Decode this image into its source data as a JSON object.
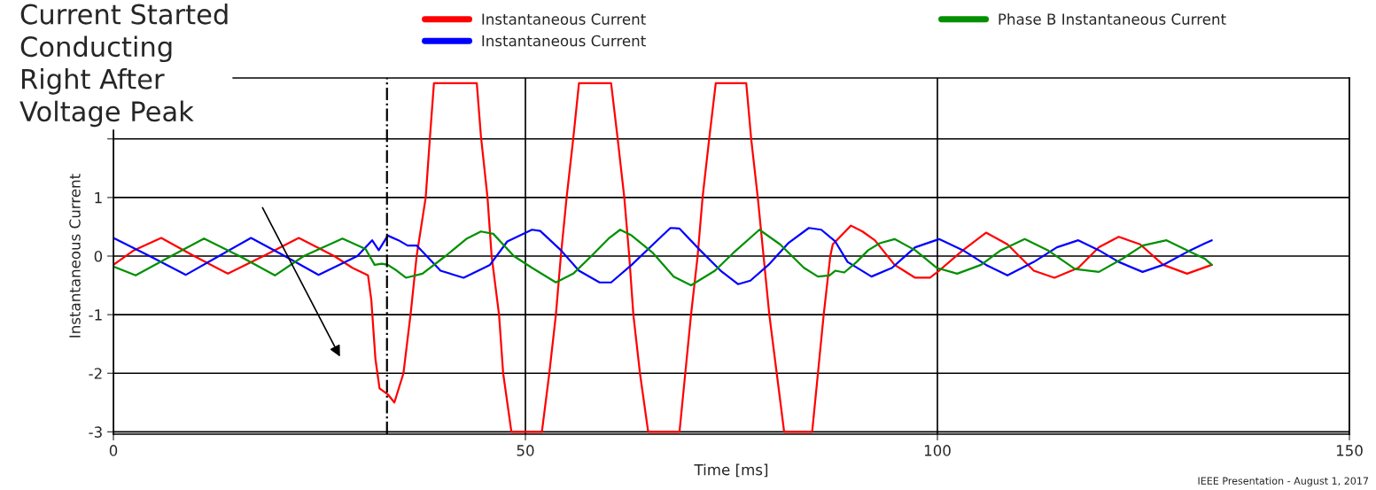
{
  "chart_data": {
    "type": "line",
    "xlabel": "Time [ms]",
    "ylabel": "Instantaneous Current",
    "xlim": [
      0,
      150
    ],
    "xticks": [
      0,
      50,
      100,
      150
    ],
    "ylim": [
      -3.04,
      3.04
    ],
    "yticks": [
      -3,
      -2,
      -1,
      0,
      1,
      {
        "value": 2,
        "label": null
      }
    ],
    "grid": true,
    "legend": "top",
    "marker": "none",
    "line_style": "solid",
    "ref_lines": [
      {
        "axis": "x",
        "value": 33.2,
        "line_style": "dashdot",
        "color": "#000000"
      }
    ],
    "annotations": [
      "Current Started\nConducting\nRight After\nVoltage Peak",
      "IEEE Presentation - August 1, 2017"
    ],
    "series": [
      {
        "name": "Instantaneous Current",
        "color": "#ff0000",
        "x": [
          0,
          2.5,
          5.8,
          9.8,
          13.9,
          18.2,
          22.5,
          26.8,
          29,
          30.9,
          31.3,
          31.8,
          32.3,
          33.3,
          34.1,
          35.2,
          36.1,
          36.8,
          37.9,
          38.4,
          38.9,
          44.1,
          44.6,
          45.4,
          45.9,
          46.8,
          47.3,
          48.3,
          52.0,
          52.9,
          53.7,
          54.3,
          55.0,
          55.8,
          56.5,
          60.4,
          61.2,
          62.0,
          62.6,
          63.1,
          63.9,
          64.9,
          68.7,
          69.4,
          70.1,
          70.9,
          71.5,
          72.3,
          73.1,
          76.8,
          77.4,
          78.2,
          78.9,
          79.6,
          80.5,
          81.4,
          84.8,
          85.5,
          86.2,
          87.0,
          87.3,
          89.5,
          90.9,
          92.4,
          94.8,
          97.3,
          99.1,
          100.2,
          103.1,
          105.9,
          108.5,
          111.7,
          114.2,
          117.1,
          119.6,
          122.0,
          124.6,
          127.4,
          130.3,
          133.3
        ],
        "values": [
          -0.15,
          0.1,
          0.31,
          0,
          -0.3,
          0,
          0.31,
          0,
          -0.2,
          -0.33,
          -0.75,
          -1.76,
          -2.26,
          -2.36,
          -2.5,
          -2.0,
          -0.95,
          0,
          1.0,
          2.0,
          2.95,
          2.95,
          2.05,
          1.0,
          0,
          -1.0,
          -2.0,
          -3.0,
          -3.0,
          -2.0,
          -1.0,
          0,
          1.0,
          2.0,
          2.95,
          2.95,
          2.0,
          1.0,
          0,
          -1.0,
          -2.0,
          -3.0,
          -3.0,
          -2.0,
          -1.0,
          0,
          1.0,
          2.0,
          2.95,
          2.95,
          2.0,
          1.0,
          0,
          -1.0,
          -2.0,
          -3.0,
          -3.0,
          -2.0,
          -1.0,
          0,
          0.2,
          0.52,
          0.42,
          0.27,
          -0.15,
          -0.37,
          -0.37,
          -0.25,
          0.1,
          0.4,
          0.2,
          -0.25,
          -0.37,
          -0.2,
          0.15,
          0.33,
          0.2,
          -0.15,
          -0.3,
          -0.15
        ]
      },
      {
        "name": "Instantaneous Current",
        "color": "#0000ff",
        "x": [
          0,
          4.4,
          8.8,
          12.8,
          16.7,
          20.8,
          24.9,
          29.6,
          31.4,
          32.2,
          33.3,
          34.6,
          35.7,
          36.8,
          39.7,
          42.5,
          45.7,
          47.8,
          50.8,
          51.8,
          54.3,
          56.5,
          59.0,
          60.4,
          62.9,
          65.5,
          67.6,
          68.7,
          71.2,
          73.7,
          75.8,
          77.3,
          79.5,
          81.9,
          84.4,
          85.9,
          87.6,
          89.1,
          92.0,
          94.5,
          97.3,
          100.2,
          103.1,
          105.9,
          108.5,
          111.7,
          114.5,
          117.1,
          119.6,
          122.0,
          124.9,
          127.4,
          130.3,
          132.5,
          133.3
        ],
        "values": [
          0.31,
          0,
          -0.32,
          0,
          0.31,
          0,
          -0.32,
          0,
          0.27,
          0.1,
          0.35,
          0.27,
          0.18,
          0.18,
          -0.25,
          -0.37,
          -0.15,
          0.25,
          0.45,
          0.43,
          0.1,
          -0.25,
          -0.45,
          -0.45,
          -0.15,
          0.2,
          0.48,
          0.47,
          0.1,
          -0.25,
          -0.48,
          -0.42,
          -0.15,
          0.22,
          0.48,
          0.45,
          0.25,
          -0.1,
          -0.35,
          -0.2,
          0.15,
          0.29,
          0.1,
          -0.15,
          -0.33,
          -0.1,
          0.15,
          0.27,
          0.1,
          -0.1,
          -0.27,
          -0.15,
          0.07,
          0.22,
          0.27
        ]
      },
      {
        "name": "Phase B Instantaneous Current",
        "color": "#009000",
        "x": [
          0,
          2.7,
          7.0,
          11.0,
          15.3,
          19.6,
          23.1,
          27.8,
          30.6,
          31.7,
          32.6,
          33.3,
          34.4,
          35.5,
          37.5,
          40.3,
          42.9,
          44.6,
          46.1,
          48.6,
          50.8,
          53.7,
          55.8,
          58.0,
          60.1,
          61.5,
          62.9,
          65.5,
          68.0,
          70.1,
          73.0,
          75.2,
          78.4,
          80.9,
          83.8,
          85.5,
          86.9,
          87.6,
          88.7,
          90.2,
          91.6,
          93.0,
          94.8,
          97.3,
          99.9,
          102.4,
          105.3,
          107.7,
          110.6,
          113.4,
          116.7,
          119.6,
          122.4,
          124.9,
          127.8,
          130.3,
          132.5,
          133.3
        ],
        "values": [
          -0.18,
          -0.33,
          0,
          0.3,
          0,
          -0.33,
          0,
          0.3,
          0.12,
          -0.15,
          -0.13,
          -0.15,
          -0.25,
          -0.37,
          -0.3,
          0,
          0.3,
          0.42,
          0.38,
          0,
          -0.2,
          -0.45,
          -0.3,
          0,
          0.3,
          0.45,
          0.35,
          0.05,
          -0.35,
          -0.5,
          -0.25,
          0.05,
          0.45,
          0.2,
          -0.2,
          -0.35,
          -0.33,
          -0.25,
          -0.28,
          -0.1,
          0.1,
          0.22,
          0.29,
          0.1,
          -0.2,
          -0.3,
          -0.15,
          0.1,
          0.29,
          0.1,
          -0.22,
          -0.27,
          -0.05,
          0.18,
          0.27,
          0.1,
          -0.05,
          -0.15
        ]
      }
    ]
  }
}
